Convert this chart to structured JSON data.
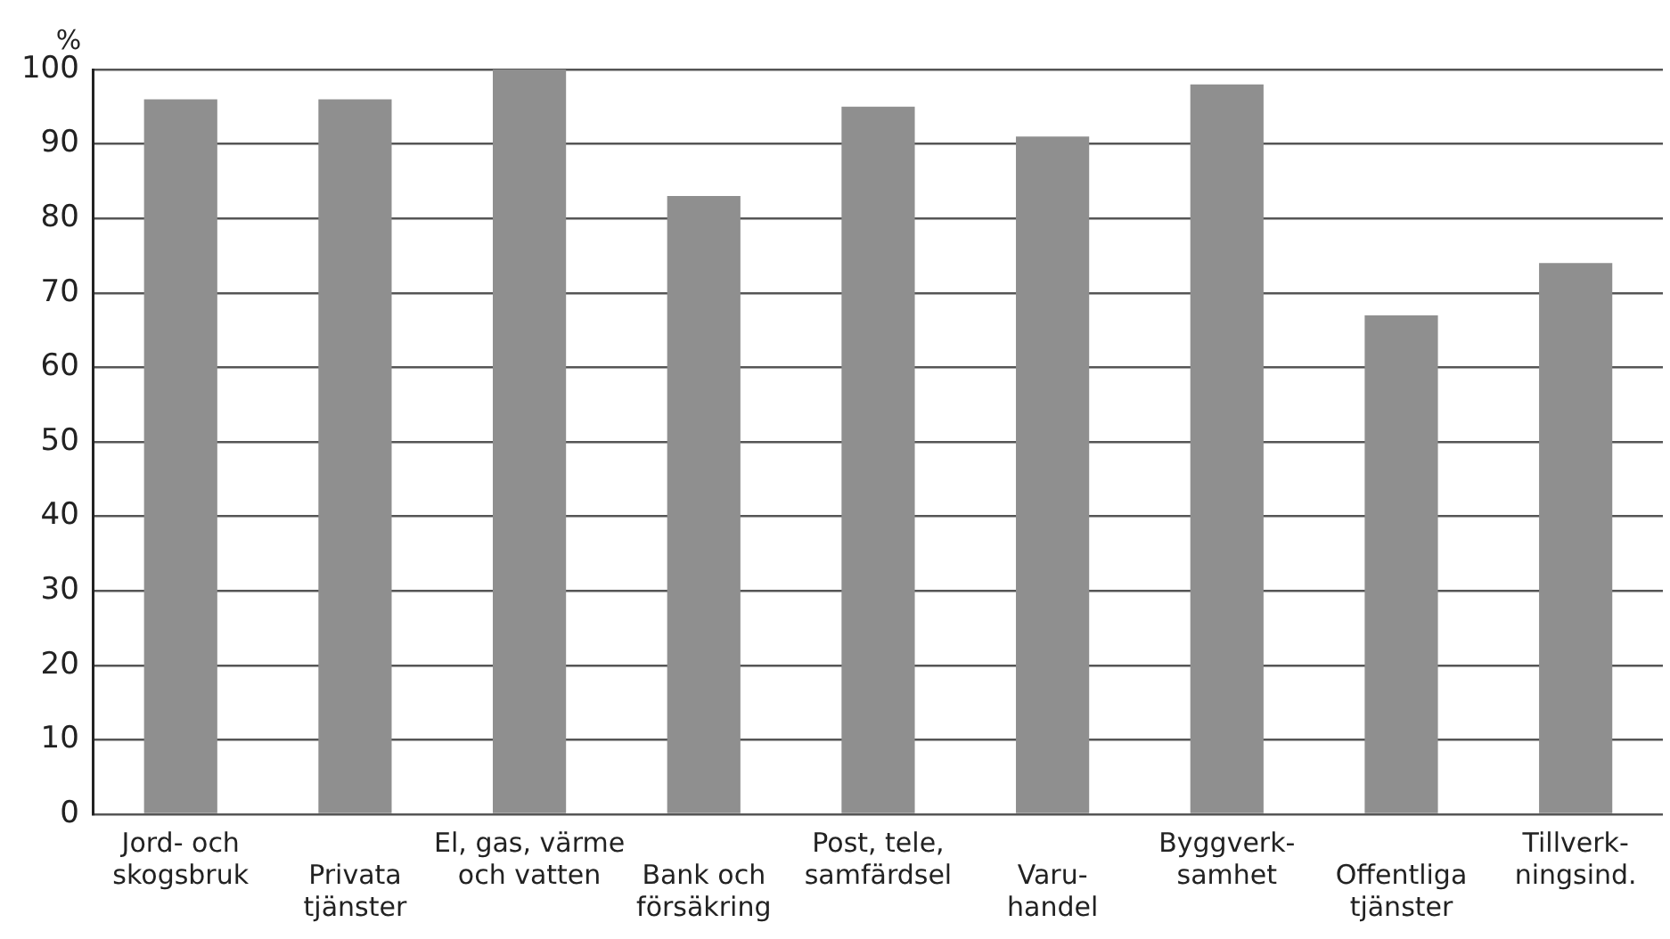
{
  "chart_data": {
    "type": "bar",
    "ylabel": "%",
    "categories": [
      "Jord- och\nskogsbruk",
      "Privata\ntjänster",
      "El, gas, värme\noch vatten",
      "Bank och\nförsäkring",
      "Post, tele,\nsamfärdsel",
      "Varu-\nhandel",
      "Byggverk-\nsamhet",
      "Offentliga\ntjänster",
      "Tillverk-\nningsind."
    ],
    "values": [
      96,
      96,
      100,
      83,
      95,
      91,
      98,
      67,
      74
    ],
    "color": "#8f8f8f",
    "ylim": [
      0,
      100
    ],
    "yticks": [
      0,
      10,
      20,
      30,
      40,
      50,
      60,
      70,
      80,
      90,
      100
    ],
    "grid": "y",
    "legend": false
  }
}
